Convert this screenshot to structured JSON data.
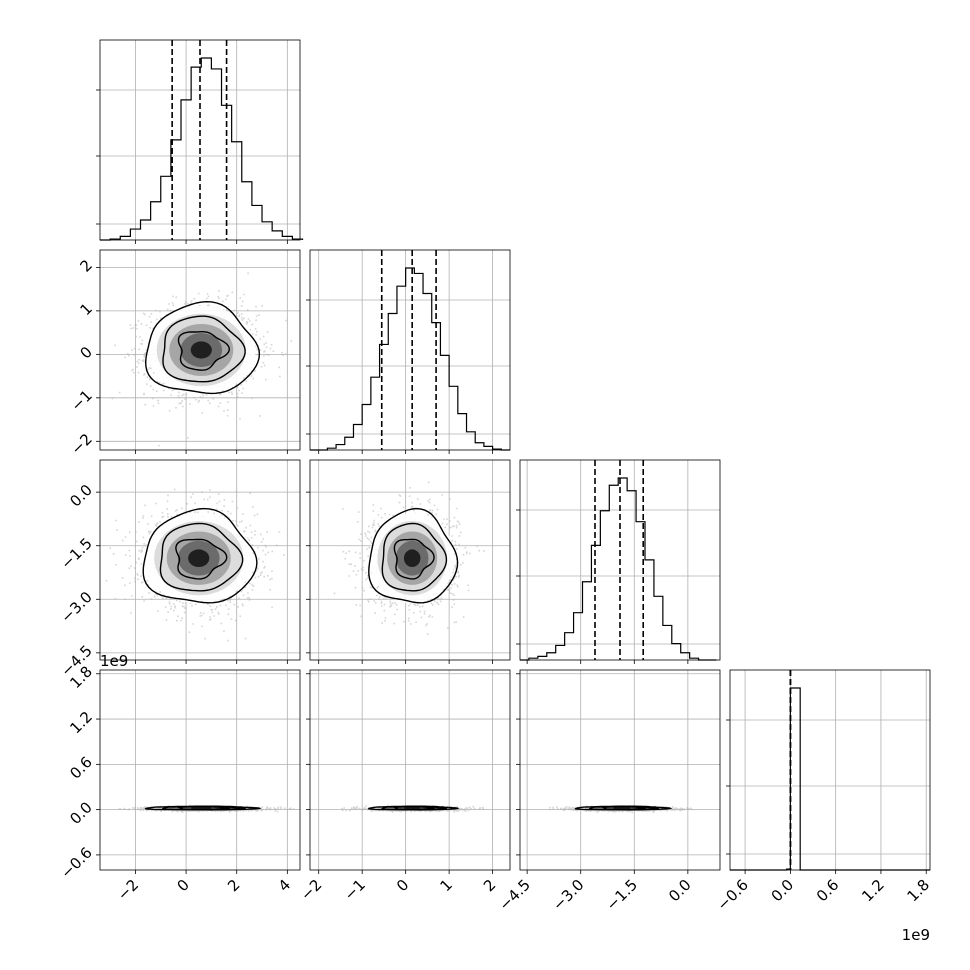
{
  "chart_data": {
    "type": "corner",
    "grid": true,
    "colors": {
      "line": "#000000",
      "grid": "#b0b0b0",
      "scatter": "#b4b4b4",
      "quantile": "#000000"
    },
    "parameters": [
      {
        "ticks": [
          "−2",
          "0",
          "2",
          "4"
        ],
        "tick_values": [
          -2,
          0,
          2,
          4
        ],
        "range": [
          -3.4,
          4.5
        ]
      },
      {
        "ticks": [
          "−2",
          "−1",
          "0",
          "1",
          "2"
        ],
        "tick_values": [
          -2,
          -1,
          0,
          1,
          2
        ],
        "range": [
          -2.2,
          2.4
        ]
      },
      {
        "ticks": [
          "−4.5",
          "−3.0",
          "−1.5",
          "0.0"
        ],
        "tick_values": [
          -4.5,
          -3.0,
          -1.5,
          0.0
        ],
        "range": [
          -4.7,
          0.9
        ]
      },
      {
        "ticks": [
          "−0.6",
          "0.0",
          "0.6",
          "1.2",
          "1.8"
        ],
        "tick_values": [
          -0.6,
          0.0,
          0.6,
          1.2,
          1.8
        ],
        "range": [
          -0.8,
          1.85
        ],
        "offset": "1e9"
      }
    ],
    "histograms": [
      {
        "param": 0,
        "bin_edges": [
          -3.4,
          -3.0,
          -2.6,
          -2.2,
          -1.8,
          -1.4,
          -1.0,
          -0.6,
          -0.2,
          0.2,
          0.6,
          1.0,
          1.4,
          1.8,
          2.2,
          2.6,
          3.0,
          3.4,
          3.8,
          4.2,
          4.6
        ],
        "counts": [
          0.0,
          0.005,
          0.02,
          0.06,
          0.11,
          0.21,
          0.35,
          0.55,
          0.77,
          0.95,
          1.0,
          0.94,
          0.74,
          0.54,
          0.32,
          0.19,
          0.1,
          0.05,
          0.02,
          0.005
        ],
        "quantiles": [
          -0.55,
          0.55,
          1.6
        ]
      },
      {
        "param": 1,
        "bin_edges": [
          -2.2,
          -2.0,
          -1.8,
          -1.6,
          -1.4,
          -1.2,
          -1.0,
          -0.8,
          -0.6,
          -0.4,
          -0.2,
          0.0,
          0.2,
          0.4,
          0.6,
          0.8,
          1.0,
          1.2,
          1.4,
          1.6,
          1.8,
          2.0,
          2.2,
          2.4
        ],
        "counts": [
          0.0,
          0.0,
          0.01,
          0.03,
          0.07,
          0.14,
          0.25,
          0.4,
          0.58,
          0.75,
          0.9,
          1.0,
          0.97,
          0.86,
          0.7,
          0.52,
          0.35,
          0.2,
          0.1,
          0.04,
          0.02,
          0.005,
          0.0
        ],
        "quantiles": [
          -0.55,
          0.15,
          0.7
        ]
      },
      {
        "param": 2,
        "bin_edges": [
          -4.7,
          -4.45,
          -4.2,
          -3.95,
          -3.7,
          -3.45,
          -3.2,
          -2.95,
          -2.7,
          -2.45,
          -2.2,
          -1.95,
          -1.7,
          -1.45,
          -1.2,
          -0.95,
          -0.7,
          -0.45,
          -0.2,
          0.05,
          0.3,
          0.55,
          0.8
        ],
        "counts": [
          0.0,
          0.01,
          0.02,
          0.04,
          0.08,
          0.15,
          0.26,
          0.43,
          0.63,
          0.82,
          0.96,
          1.0,
          0.93,
          0.76,
          0.55,
          0.35,
          0.19,
          0.09,
          0.04,
          0.01,
          0.0,
          0.0
        ],
        "quantiles": [
          -2.6,
          -1.9,
          -1.25
        ]
      },
      {
        "param": 3,
        "bin_edges": [
          -0.8,
          -0.65,
          -0.5,
          -0.35,
          -0.2,
          -0.05,
          0.0,
          0.13,
          0.25,
          0.4,
          0.55,
          0.7,
          0.85,
          1.0,
          1.15,
          1.3,
          1.45,
          1.6,
          1.75,
          1.85
        ],
        "counts": [
          0.0,
          0.0,
          0.0,
          0.0,
          0.0,
          0.005,
          1.0,
          0.0,
          0.0,
          0.0,
          0.0,
          0.0,
          0.0,
          0.0,
          0.0,
          0.0,
          0.0,
          0.0,
          0.0
        ],
        "quantiles": [
          0.0,
          0.0,
          0.0
        ]
      }
    ],
    "pairs": [
      {
        "x": 0,
        "y": 1,
        "center": [
          0.6,
          0.1
        ],
        "sigma": [
          1.1,
          0.52
        ]
      },
      {
        "x": 0,
        "y": 2,
        "center": [
          0.5,
          -1.85
        ],
        "sigma": [
          1.1,
          0.65
        ]
      },
      {
        "x": 1,
        "y": 2,
        "center": [
          0.15,
          -1.85
        ],
        "sigma": [
          0.5,
          0.65
        ]
      },
      {
        "x": 0,
        "y": 3,
        "center": [
          0.6,
          0.02
        ],
        "sigma": [
          1.1,
          0.012
        ]
      },
      {
        "x": 1,
        "y": 3,
        "center": [
          0.15,
          0.02
        ],
        "sigma": [
          0.5,
          0.012
        ]
      },
      {
        "x": 2,
        "y": 3,
        "center": [
          -1.85,
          0.02
        ],
        "sigma": [
          0.65,
          0.012
        ]
      }
    ]
  }
}
